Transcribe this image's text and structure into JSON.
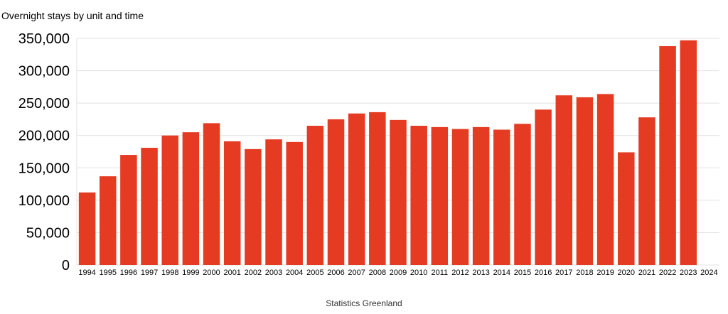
{
  "chart_data": {
    "type": "bar",
    "title": "Overnight stays by unit and time",
    "source": "Statistics Greenland",
    "xlabel": "",
    "ylabel": "",
    "ylim": [
      0,
      350000
    ],
    "yticks": [
      "0",
      "50,000",
      "100,000",
      "150,000",
      "200,000",
      "250,000",
      "300,000",
      "350,000"
    ],
    "grid": true,
    "categories": [
      "1994",
      "1995",
      "1996",
      "1997",
      "1998",
      "1999",
      "2000",
      "2001",
      "2002",
      "2003",
      "2004",
      "2005",
      "2006",
      "2007",
      "2008",
      "2009",
      "2010",
      "2011",
      "2012",
      "2013",
      "2014",
      "2015",
      "2016",
      "2017",
      "2018",
      "2019",
      "2020",
      "2021",
      "2022",
      "2023",
      "2024"
    ],
    "values": [
      112000,
      137000,
      170000,
      181000,
      200000,
      205000,
      219000,
      191000,
      179000,
      194000,
      190000,
      215000,
      225000,
      234000,
      236000,
      224000,
      215000,
      213000,
      210000,
      213000,
      209000,
      218000,
      240000,
      262000,
      259000,
      264000,
      174000,
      228000,
      338000,
      347000,
      null
    ],
    "colors": {
      "bar": "#e63b23",
      "grid": "#e0e0e0"
    }
  }
}
